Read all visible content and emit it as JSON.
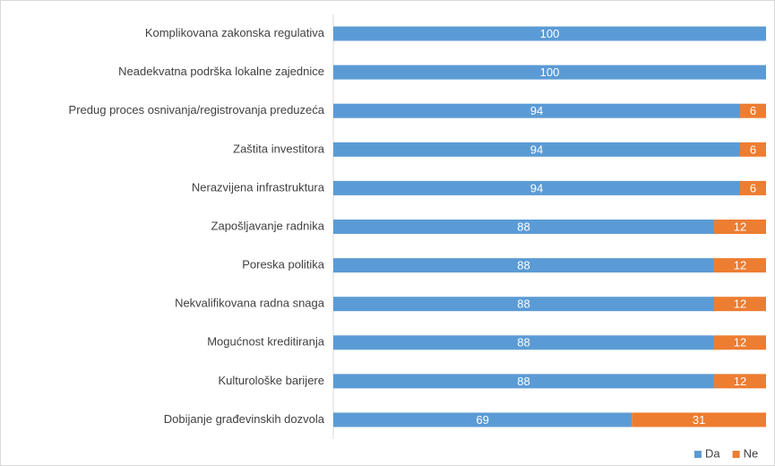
{
  "chart_data": {
    "type": "bar",
    "orientation": "horizontal",
    "stacked": true,
    "categories": [
      "Komplikovana zakonska regulativa",
      "Neadekvatna podrška lokalne zajednice",
      "Predug proces osnivanja/registrovanja preduzeća",
      "Zaštita investitora",
      "Nerazvijena infrastruktura",
      "Zapošljavanje radnika",
      "Poreska politika",
      "Nekvalifikovana radna snaga",
      "Mogućnost kreditiranja",
      "Kulturološke barijere",
      "Dobijanje građevinskih dozvola"
    ],
    "series": [
      {
        "name": "Da",
        "color": "#5b9bd5",
        "values": [
          100,
          100,
          94,
          94,
          94,
          88,
          88,
          88,
          88,
          88,
          69
        ]
      },
      {
        "name": "Ne",
        "color": "#ed7d31",
        "values": [
          null,
          null,
          6,
          6,
          6,
          12,
          12,
          12,
          12,
          12,
          31
        ]
      }
    ],
    "xlim": [
      0,
      100
    ],
    "legend": "bottom-right"
  }
}
